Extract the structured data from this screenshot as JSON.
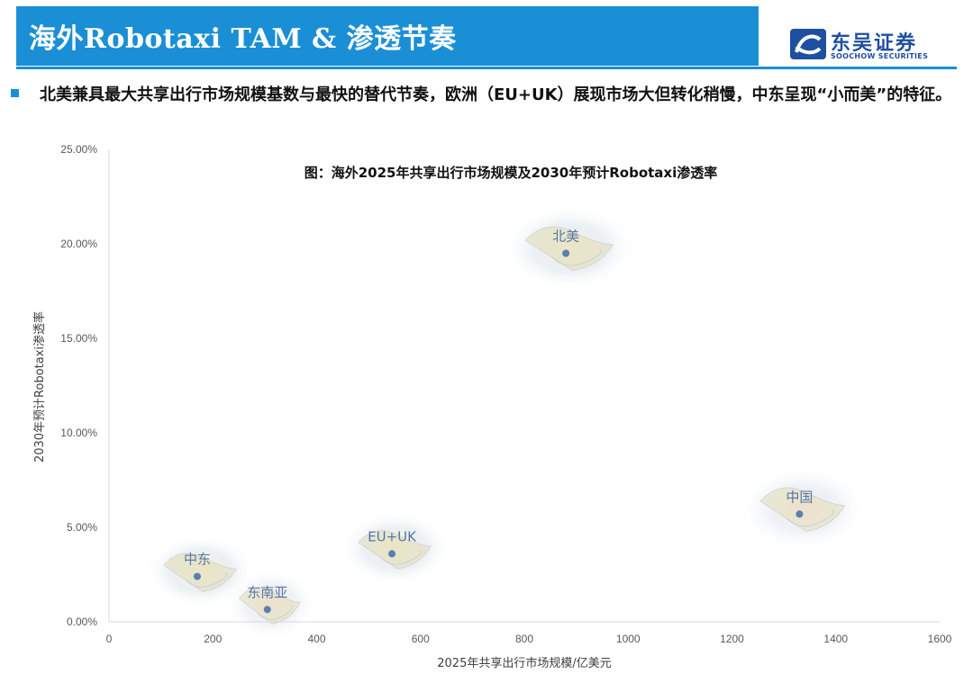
{
  "header": {
    "title": "海外Robotaxi TAM & 渗透节奏",
    "logo_cn": "东吴证券",
    "logo_en": "SOOCHOW SECURITIES",
    "brand_color": "#1a8fd6"
  },
  "bullet": {
    "text": "北美兼具最大共享出行市场规模基数与最快的替代节奏，欧洲（EU+UK）展现市场大但转化稍慢，中东呈现“小而美”的特征。"
  },
  "chart_data": {
    "type": "scatter",
    "title": "图：海外2025年共享出行市场规模及2030年预计Robotaxi渗透率",
    "xlabel": "2025年共享出行市场规模/亿美元",
    "ylabel": "2030年预计Robotaxi渗透率",
    "xlim": [
      0,
      1600
    ],
    "ylim": [
      0,
      0.25
    ],
    "x_ticks": [
      "0",
      "200",
      "400",
      "600",
      "800",
      "1000",
      "1200",
      "1400",
      "1600"
    ],
    "y_ticks": [
      "0.00%",
      "5.00%",
      "10.00%",
      "15.00%",
      "20.00%",
      "25.00%"
    ],
    "grid": false,
    "points": [
      {
        "label": "北美",
        "x": 880,
        "y": 0.195,
        "marker": "north-america-map-icon"
      },
      {
        "label": "中国",
        "x": 1330,
        "y": 0.057,
        "marker": "china-map-icon"
      },
      {
        "label": "EU+UK",
        "x": 545,
        "y": 0.036,
        "marker": "europe-map-icon"
      },
      {
        "label": "中东",
        "x": 170,
        "y": 0.024,
        "marker": "middle-east-map-icon"
      },
      {
        "label": "东南亚",
        "x": 305,
        "y": 0.0065,
        "marker": "southeast-asia-map-icon"
      }
    ],
    "point_color": "#5a7fb3",
    "label_color": "#5577aa"
  }
}
